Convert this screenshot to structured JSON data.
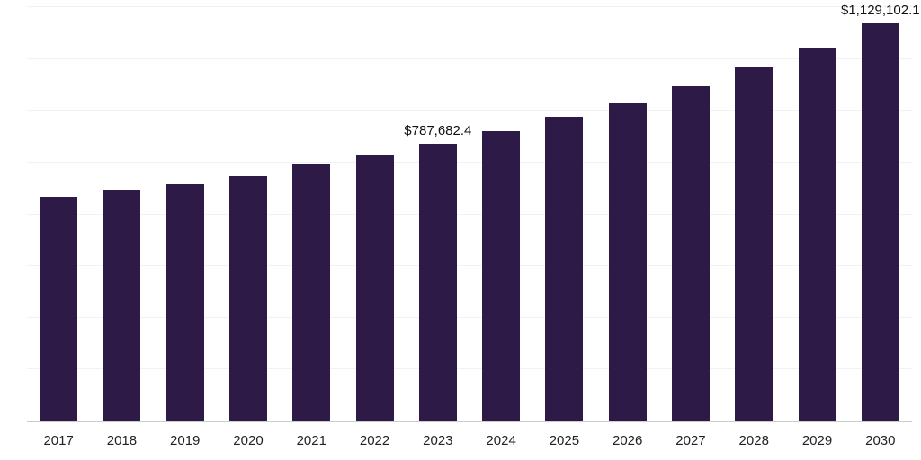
{
  "chart_data": {
    "type": "bar",
    "title": "",
    "xlabel": "",
    "ylabel": "",
    "categories": [
      "2017",
      "2018",
      "2019",
      "2020",
      "2021",
      "2022",
      "2023",
      "2024",
      "2025",
      "2026",
      "2027",
      "2028",
      "2029",
      "2030"
    ],
    "values": [
      636000,
      656000,
      674000,
      697000,
      728000,
      756000,
      787682.4,
      822500,
      863000,
      901800,
      950000,
      1004000,
      1060000,
      1129102.1
    ],
    "data_labels": {
      "2023": "$787,682.4",
      "2030": "$1,129,102.1"
    },
    "ylim": [
      0,
      1175000
    ],
    "grid": "horizontal-faint",
    "gridline_count": 8,
    "legend": "none",
    "bar_color": "#2E1A47",
    "axis_line_color": "#cccccc",
    "label_color": "#111111"
  }
}
